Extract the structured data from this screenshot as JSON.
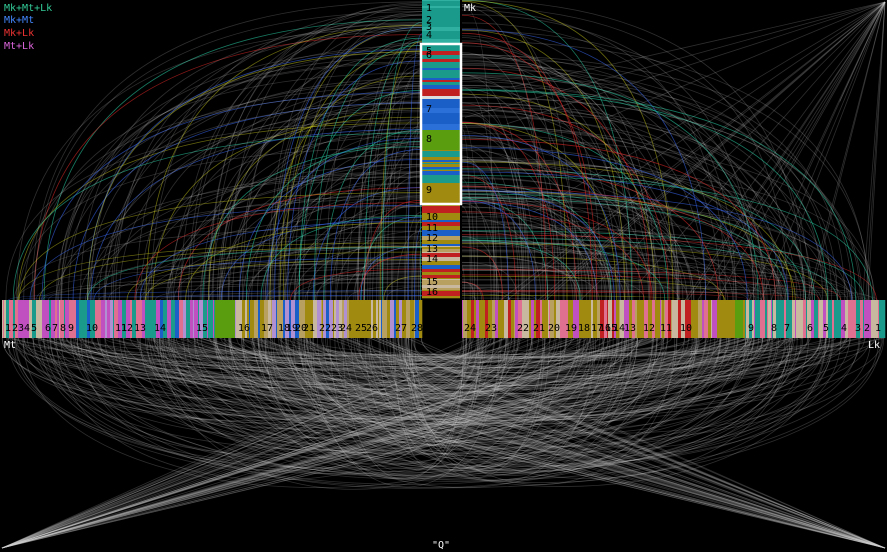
{
  "legend": [
    "Mk+Mt+Lk",
    "Mk+Mt",
    "Mk+Lk",
    "Mt+Lk"
  ],
  "axes": {
    "mk": {
      "label": "Mk",
      "chromosomes": [
        1,
        2,
        3,
        4,
        5,
        6,
        7,
        8,
        9,
        10,
        11,
        12,
        13,
        14,
        15,
        16
      ]
    },
    "mt": {
      "label": "Mt",
      "chromosomes": [
        1,
        2,
        3,
        4,
        5,
        6,
        7,
        8,
        9,
        10,
        11,
        12,
        13,
        14,
        15,
        16,
        17,
        18,
        19,
        20,
        21,
        22,
        23,
        24,
        25,
        26,
        27,
        28
      ]
    },
    "lk": {
      "label": "Lk",
      "chromosomes": [
        24,
        23,
        22,
        21,
        20,
        19,
        18,
        17,
        16,
        15,
        14,
        13,
        12,
        11,
        10,
        9,
        8,
        7,
        6,
        5,
        4,
        3,
        2,
        1
      ]
    }
  },
  "footer": "\"Q\""
}
